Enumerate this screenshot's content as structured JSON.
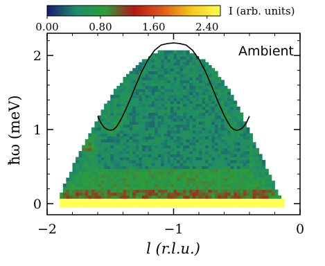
{
  "chart_data": {
    "type": "heatmap",
    "title": "",
    "xlabel": "l (r.l.u.)",
    "ylabel": "ħω (meV)",
    "xlim": [
      -2,
      0
    ],
    "ylim": [
      -0.15,
      2.3
    ],
    "xticks": [
      -2,
      -1,
      0
    ],
    "xtick_labels": [
      "−2",
      "−1",
      "0"
    ],
    "yticks": [
      0,
      1,
      2
    ],
    "ytick_labels": [
      "0",
      "1",
      "2"
    ],
    "annotation": "Ambient",
    "colorbar": {
      "label": "I (arb. units)",
      "range": [
        0,
        2.6
      ],
      "ticks": [
        0.0,
        0.8,
        1.6,
        2.4
      ],
      "tick_labels": [
        "0.00",
        "0.80",
        "1.60",
        "2.40"
      ],
      "colors": [
        "#1a1a6e",
        "#1f8a6a",
        "#2e9e3a",
        "#b01818",
        "#e05a1a",
        "#f4c81e",
        "#ffff55"
      ]
    },
    "intensity_map": {
      "coverage_top_energy": [
        [
          -1.9,
          0.1
        ],
        [
          -1.75,
          0.65
        ],
        [
          -1.6,
          1.15
        ],
        [
          -1.45,
          1.55
        ],
        [
          -1.3,
          1.85
        ],
        [
          -1.15,
          2.02
        ],
        [
          -1.0,
          2.07
        ],
        [
          -0.85,
          2.02
        ],
        [
          -0.7,
          1.85
        ],
        [
          -0.55,
          1.5
        ],
        [
          -0.45,
          1.15
        ],
        [
          -0.3,
          0.6
        ],
        [
          -0.15,
          0.05
        ]
      ],
      "elastic_line_energy": [
        -0.05,
        0.05
      ],
      "elastic_intensity": 2.6,
      "background_intensity": 0.8,
      "mode_intensity": 0.45
    },
    "series": [
      {
        "type": "line",
        "x": [
          -1.6,
          -1.575,
          -1.55,
          -1.525,
          -1.5,
          -1.475,
          -1.45,
          -1.425,
          -1.4,
          -1.35,
          -1.3,
          -1.25,
          -1.2,
          -1.15,
          -1.1,
          -1.05,
          -1.0,
          -0.95,
          -0.9,
          -0.85,
          -0.8,
          -0.75,
          -0.7,
          -0.65,
          -0.6,
          -0.575,
          -0.55,
          -0.525,
          -0.5,
          -0.475,
          -0.45,
          -0.425,
          -0.4
        ],
        "y": [
          1.18,
          1.09,
          1.03,
          1.0,
          0.99,
          1.0,
          1.04,
          1.11,
          1.19,
          1.38,
          1.59,
          1.79,
          1.95,
          2.07,
          2.14,
          2.16,
          2.17,
          2.16,
          2.14,
          2.07,
          1.95,
          1.79,
          1.59,
          1.38,
          1.19,
          1.11,
          1.04,
          1.0,
          0.99,
          1.0,
          1.03,
          1.09,
          1.18
        ]
      }
    ]
  }
}
